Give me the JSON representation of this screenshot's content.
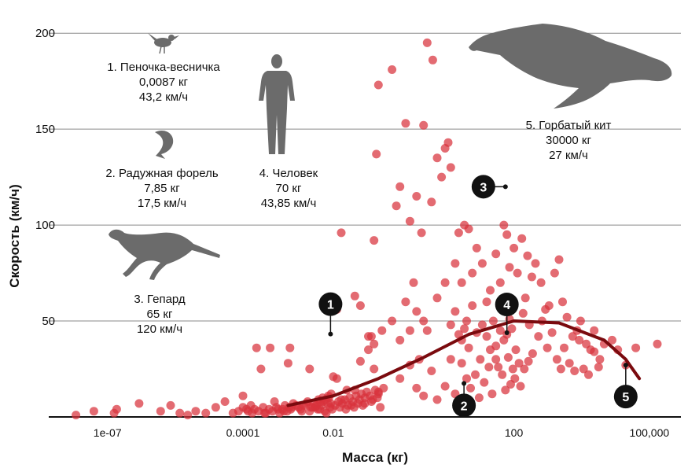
{
  "chart_data": {
    "type": "scatter",
    "xlabel": "Масса (кг)",
    "ylabel": "Скорость (км/ч)",
    "xscale": "log",
    "xlim": [
      5e-09,
      500000.0
    ],
    "ylim": [
      0,
      205
    ],
    "x_ticks": [
      {
        "value": 1e-07,
        "label": "1e-07"
      },
      {
        "value": 0.0001,
        "label": "0.0001"
      },
      {
        "value": 0.01,
        "label": "0.01"
      },
      {
        "value": 100,
        "label": "100"
      },
      {
        "value": 100000,
        "label": "100,000"
      }
    ],
    "y_ticks": [
      {
        "value": 50,
        "label": "50"
      },
      {
        "value": 100,
        "label": "100"
      },
      {
        "value": 150,
        "label": "150"
      },
      {
        "value": 200,
        "label": "200"
      }
    ],
    "grid": "horizontal",
    "point_color": "#d8323c",
    "curve_color": "#7a0a0e",
    "points": [
      [
        2e-08,
        1
      ],
      [
        5e-08,
        3
      ],
      [
        1.4e-07,
        2
      ],
      [
        1.6e-07,
        4
      ],
      [
        5e-07,
        7
      ],
      [
        1.5e-06,
        3
      ],
      [
        2.5e-06,
        6
      ],
      [
        4e-06,
        2
      ],
      [
        6e-06,
        1
      ],
      [
        9e-06,
        3
      ],
      [
        1.5e-05,
        2
      ],
      [
        2.5e-05,
        5
      ],
      [
        4e-05,
        8
      ],
      [
        6e-05,
        2
      ],
      [
        8e-05,
        3
      ],
      [
        0.0001,
        11
      ],
      [
        0.00012,
        4
      ],
      [
        0.00015,
        6
      ],
      [
        0.0002,
        36
      ],
      [
        0.00025,
        25
      ],
      [
        0.0003,
        2
      ],
      [
        0.0004,
        36
      ],
      [
        0.0005,
        8
      ],
      [
        0.0006,
        4
      ],
      [
        0.0008,
        3
      ],
      [
        0.001,
        28
      ],
      [
        0.0011,
        36
      ],
      [
        0.0012,
        5
      ],
      [
        0.0015,
        6
      ],
      [
        0.002,
        3
      ],
      [
        0.0025,
        7
      ],
      [
        0.003,
        25
      ],
      [
        0.004,
        5
      ],
      [
        0.005,
        4
      ],
      [
        0.006,
        8
      ],
      [
        0.007,
        2
      ],
      [
        0.008,
        10
      ],
      [
        0.009,
        12
      ],
      [
        0.01,
        21
      ],
      [
        0.012,
        20
      ],
      [
        0.015,
        9
      ],
      [
        0.02,
        14
      ],
      [
        0.025,
        6
      ],
      [
        0.03,
        14
      ],
      [
        0.04,
        29
      ],
      [
        0.05,
        7
      ],
      [
        0.06,
        42
      ],
      [
        0.07,
        8
      ],
      [
        0.08,
        38
      ],
      [
        0.1,
        12
      ],
      [
        0.11,
        5
      ],
      [
        0.012,
        56
      ],
      [
        0.015,
        96
      ],
      [
        0.03,
        63
      ],
      [
        0.04,
        58
      ],
      [
        0.06,
        35
      ],
      [
        0.07,
        42
      ],
      [
        0.08,
        25
      ],
      [
        0.1,
        13
      ],
      [
        0.12,
        45
      ],
      [
        0.2,
        50
      ],
      [
        0.25,
        110
      ],
      [
        0.3,
        40
      ],
      [
        0.4,
        60
      ],
      [
        0.5,
        45
      ],
      [
        0.6,
        70
      ],
      [
        0.7,
        55
      ],
      [
        0.8,
        30
      ],
      [
        1.0,
        50
      ],
      [
        1.2,
        45
      ],
      [
        0.5,
        102
      ],
      [
        0.7,
        115
      ],
      [
        0.9,
        96
      ],
      [
        1.5,
        112
      ],
      [
        2.0,
        135
      ],
      [
        2.5,
        125
      ],
      [
        3.0,
        140
      ],
      [
        4.0,
        130
      ],
      [
        1.0,
        152
      ],
      [
        0.3,
        120
      ],
      [
        0.08,
        92
      ],
      [
        0.09,
        137
      ],
      [
        0.1,
        173
      ],
      [
        0.2,
        181
      ],
      [
        0.4,
        153
      ],
      [
        1.2,
        195
      ],
      [
        1.6,
        186
      ],
      [
        3.5,
        143
      ],
      [
        5.0,
        80
      ],
      [
        6.0,
        96
      ],
      [
        7.0,
        70
      ],
      [
        8.0,
        100
      ],
      [
        10.0,
        98
      ],
      [
        12.0,
        75
      ],
      [
        15.0,
        88
      ],
      [
        20.0,
        80
      ],
      [
        25.0,
        60
      ],
      [
        30.0,
        66
      ],
      [
        40.0,
        85
      ],
      [
        50.0,
        70
      ],
      [
        60.0,
        100
      ],
      [
        70.0,
        95
      ],
      [
        80.0,
        78
      ],
      [
        90.0,
        56
      ],
      [
        100.0,
        88
      ],
      [
        120.0,
        75
      ],
      [
        150.0,
        93
      ],
      [
        200.0,
        84
      ],
      [
        250.0,
        73
      ],
      [
        300.0,
        80
      ],
      [
        400.0,
        70
      ],
      [
        500.0,
        56
      ],
      [
        600.0,
        58
      ],
      [
        800.0,
        75
      ],
      [
        1000.0,
        82
      ],
      [
        1200.0,
        60
      ],
      [
        1500.0,
        52
      ],
      [
        2000.0,
        42
      ],
      [
        2500.0,
        45
      ],
      [
        3000.0,
        50
      ],
      [
        4000.0,
        38
      ],
      [
        5000.0,
        35
      ],
      [
        6000.0,
        45
      ],
      [
        8000.0,
        30
      ],
      [
        10000.0,
        38
      ],
      [
        15000.0,
        40
      ],
      [
        20000.0,
        35
      ],
      [
        30000.0,
        27
      ],
      [
        50000.0,
        36
      ],
      [
        150000.0,
        38
      ],
      [
        2.0,
        62
      ],
      [
        3.0,
        70
      ],
      [
        4.0,
        48
      ],
      [
        5.0,
        55
      ],
      [
        6.0,
        43
      ],
      [
        7.0,
        40
      ],
      [
        8.0,
        46
      ],
      [
        9.0,
        50
      ],
      [
        10.0,
        36
      ],
      [
        12.0,
        58
      ],
      [
        15.0,
        44
      ],
      [
        18.0,
        30
      ],
      [
        20.0,
        48
      ],
      [
        25.0,
        42
      ],
      [
        30.0,
        35
      ],
      [
        35.0,
        50
      ],
      [
        40.0,
        30
      ],
      [
        45.0,
        26
      ],
      [
        50.0,
        45
      ],
      [
        60.0,
        40
      ],
      [
        70.0,
        43
      ],
      [
        80.0,
        51
      ],
      [
        90.0,
        46
      ],
      [
        110.0,
        35
      ],
      [
        130.0,
        28
      ],
      [
        160.0,
        54
      ],
      [
        180.0,
        62
      ],
      [
        220.0,
        48
      ],
      [
        260.0,
        33
      ],
      [
        350.0,
        42
      ],
      [
        420.0,
        50
      ],
      [
        550.0,
        36
      ],
      [
        700.0,
        44
      ],
      [
        900.0,
        30
      ],
      [
        1100.0,
        25
      ],
      [
        1300.0,
        36
      ],
      [
        1700.0,
        28
      ],
      [
        2200.0,
        24
      ],
      [
        2800.0,
        40
      ],
      [
        3500.0,
        25
      ],
      [
        4500.0,
        22
      ],
      [
        6000.0,
        34
      ],
      [
        7500.0,
        26
      ],
      [
        0.3,
        20
      ],
      [
        0.5,
        27
      ],
      [
        0.7,
        15
      ],
      [
        1.0,
        11
      ],
      [
        1.5,
        24
      ],
      [
        2.0,
        9
      ],
      [
        3.0,
        16
      ],
      [
        4.0,
        30
      ],
      [
        5.0,
        12
      ],
      [
        7.0,
        28
      ],
      [
        9.0,
        20
      ],
      [
        11.0,
        15
      ],
      [
        14.0,
        22
      ],
      [
        17.0,
        10
      ],
      [
        22.0,
        18
      ],
      [
        28.0,
        26
      ],
      [
        33.0,
        12
      ],
      [
        40.0,
        37
      ],
      [
        55.0,
        22
      ],
      [
        65.0,
        14
      ],
      [
        75.0,
        31
      ],
      [
        85.0,
        17
      ],
      [
        95.0,
        25
      ],
      [
        105.0,
        20
      ],
      [
        140.0,
        16
      ],
      [
        170.0,
        25
      ],
      [
        210.0,
        29
      ],
      [
        0.003,
        3
      ],
      [
        0.0035,
        5
      ],
      [
        0.0045,
        4
      ],
      [
        0.0055,
        6
      ],
      [
        0.0065,
        3
      ],
      [
        0.0075,
        7
      ],
      [
        0.0085,
        5
      ],
      [
        0.0095,
        4
      ],
      [
        0.011,
        6
      ],
      [
        0.013,
        8
      ],
      [
        0.014,
        5
      ],
      [
        0.016,
        7
      ],
      [
        0.018,
        9
      ],
      [
        0.019,
        4
      ],
      [
        0.021,
        6
      ],
      [
        0.023,
        10
      ],
      [
        0.027,
        8
      ],
      [
        0.029,
        5
      ],
      [
        0.032,
        11
      ],
      [
        0.035,
        7
      ],
      [
        0.038,
        9
      ],
      [
        0.042,
        12
      ],
      [
        0.045,
        6
      ],
      [
        0.05,
        10
      ],
      [
        0.055,
        13
      ],
      [
        0.065,
        11
      ],
      [
        0.075,
        9
      ],
      [
        0.085,
        14
      ],
      [
        0.095,
        10
      ],
      [
        0.13,
        15
      ],
      [
        0.0001,
        5
      ],
      [
        0.00013,
        3
      ],
      [
        0.00016,
        2
      ],
      [
        0.00018,
        4
      ],
      [
        0.00022,
        3
      ],
      [
        0.00028,
        5
      ],
      [
        0.00032,
        2
      ],
      [
        0.00038,
        4
      ],
      [
        0.00045,
        3
      ],
      [
        0.00055,
        5
      ],
      [
        0.00065,
        2
      ],
      [
        0.00075,
        4
      ],
      [
        0.00085,
        6
      ],
      [
        0.00095,
        3
      ],
      [
        0.00105,
        5
      ],
      [
        0.00115,
        4
      ],
      [
        0.0013,
        7
      ],
      [
        0.0017,
        5
      ],
      [
        0.0019,
        4
      ],
      [
        0.0022,
        6
      ],
      [
        0.0027,
        8
      ],
      [
        0.0032,
        5
      ],
      [
        0.0037,
        7
      ],
      [
        0.0042,
        6
      ],
      [
        0.0047,
        9
      ],
      [
        0.0052,
        8
      ],
      [
        0.0058,
        10
      ],
      [
        0.0068,
        9
      ],
      [
        0.0078,
        11
      ],
      [
        0.0088,
        7
      ]
    ],
    "curve": [
      [
        0.001,
        6
      ],
      [
        0.01,
        11
      ],
      [
        0.1,
        20
      ],
      [
        1,
        31
      ],
      [
        10,
        43
      ],
      [
        100,
        50
      ],
      [
        1000,
        49
      ],
      [
        10000,
        40
      ],
      [
        30000,
        30
      ],
      [
        60000,
        20
      ]
    ],
    "highlights": [
      {
        "id": "1",
        "x": 0.0087,
        "y": 43.2
      },
      {
        "id": "2",
        "x": 7.85,
        "y": 17.5
      },
      {
        "id": "3",
        "x": 65,
        "y": 120
      },
      {
        "id": "4",
        "x": 70,
        "y": 43.85
      },
      {
        "id": "5",
        "x": 30000,
        "y": 27
      }
    ]
  },
  "annotations": [
    {
      "id": "1",
      "name": "1. Пеночка-весничка",
      "mass": "0,0087 кг",
      "speed": "43,2 км/ч"
    },
    {
      "id": "2",
      "name": "2. Радужная форель",
      "mass": "7,85 кг",
      "speed": "17,5 км/ч"
    },
    {
      "id": "3",
      "name": "3. Гепард",
      "mass": "65 кг",
      "speed": "120 км/ч"
    },
    {
      "id": "4",
      "name": "4. Человек",
      "mass": "70 кг",
      "speed": "43,85 км/ч"
    },
    {
      "id": "5",
      "name": "5. Горбатый кит",
      "mass": "30000 кг",
      "speed": "27 км/ч"
    }
  ],
  "icons": [
    "bird-icon",
    "fish-icon",
    "cheetah-icon",
    "human-icon",
    "whale-icon"
  ]
}
